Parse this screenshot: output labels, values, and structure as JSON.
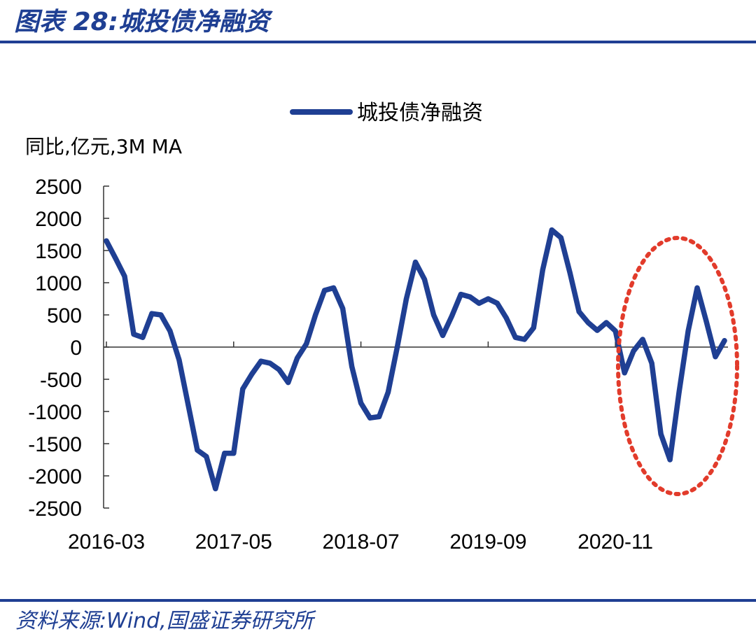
{
  "header": {
    "title": "图表 28:城投债净融资"
  },
  "footer": {
    "source": "资料来源:Wind,国盛证券研究所"
  },
  "chart_data": {
    "type": "line",
    "title": "",
    "ylabel": "同比,亿元,3M MA",
    "xlabel": "",
    "ylim": [
      -2500,
      2500
    ],
    "yticks": [
      2500,
      2000,
      1500,
      1000,
      500,
      0,
      -500,
      -1000,
      -1500,
      -2000,
      -2500
    ],
    "ytick_labels": [
      "2500",
      "2000",
      "1500",
      "1000",
      "500",
      "0",
      "-500",
      "-1000",
      "-1500",
      "-2000",
      "-2500"
    ],
    "xtick_labels": [
      "2016-03",
      "2017-05",
      "2018-07",
      "2019-09",
      "2020-11"
    ],
    "xtick_indices": [
      0,
      14,
      28,
      42,
      56
    ],
    "legend": "top-center",
    "grid": false,
    "annotation": "red dotted ellipse highlighting recent values",
    "colors": {
      "line": "#1f3f93",
      "highlight": "#e23b2b",
      "accent": "#1f3f93"
    },
    "series": [
      {
        "name": "城投债净融资",
        "values": [
          1650,
          1380,
          1100,
          200,
          150,
          520,
          500,
          250,
          -200,
          -900,
          -1600,
          -1700,
          -2200,
          -1650,
          -1650,
          -650,
          -420,
          -220,
          -250,
          -350,
          -550,
          -170,
          50,
          500,
          880,
          920,
          600,
          -300,
          -870,
          -1100,
          -1080,
          -700,
          0,
          750,
          1320,
          1050,
          500,
          180,
          480,
          820,
          780,
          680,
          750,
          680,
          450,
          150,
          120,
          300,
          1200,
          1820,
          1700,
          1150,
          550,
          380,
          260,
          380,
          250,
          -400,
          -60,
          120,
          -250,
          -1350,
          -1750,
          -700,
          250,
          920,
          400,
          -150,
          100
        ]
      }
    ]
  }
}
